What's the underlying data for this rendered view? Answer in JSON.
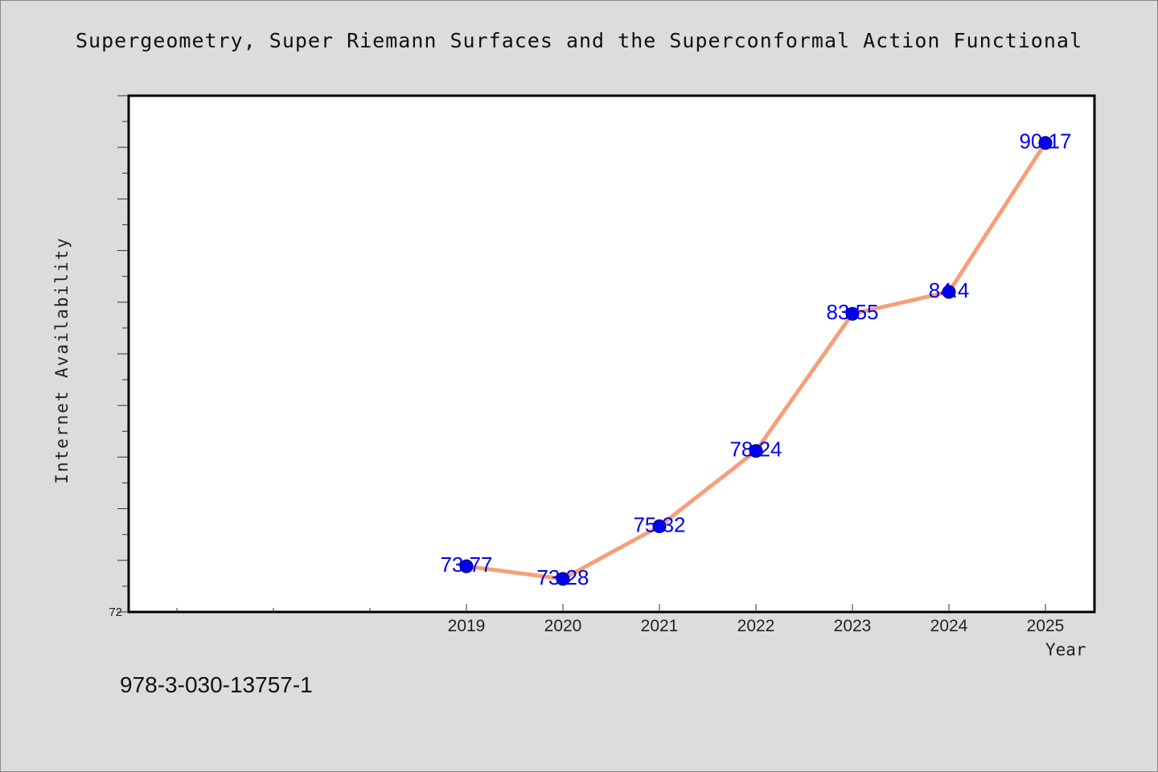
{
  "chart_data": {
    "type": "line",
    "title": "Supergeometry, Super Riemann Surfaces and the Superconformal Action Functional",
    "xlabel": "Year",
    "ylabel": "Internet Availability",
    "categories": [
      "2019",
      "2020",
      "2021",
      "2022",
      "2023",
      "2024",
      "2025"
    ],
    "series": [
      {
        "values": [
          73.77,
          73.28,
          75.32,
          78.24,
          83.55,
          84.4,
          90.17
        ],
        "data_labels": [
          "73.77",
          "73.28",
          "75.32",
          "78.24",
          "83.55",
          "84.4",
          "90.17"
        ],
        "line_color": "#f4a07a",
        "marker_color": "#0000ee"
      }
    ],
    "ylim": [
      72,
      92
    ],
    "y_tick_labels": [
      "72"
    ],
    "grid": false,
    "legend": "none",
    "plot_background": "#ffffff",
    "figure_background": "#dcdcdc"
  },
  "footnote": "978-3-030-13757-1"
}
